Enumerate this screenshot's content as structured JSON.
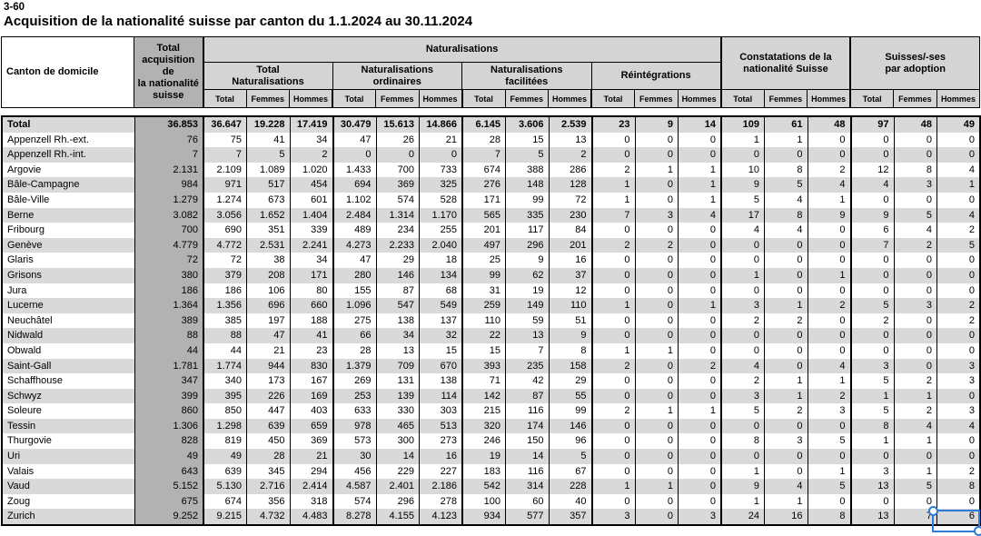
{
  "page": {
    "code": "3-60",
    "title": "Acquisition de la nationalité suisse par canton du 1.1.2024 au 30.11.2024"
  },
  "table": {
    "header": {
      "canton": "Canton de domicile",
      "total_acquisition": "Total\nacquisition de\nla nationalité\nsuisse",
      "naturalisations": "Naturalisations",
      "group_total": "Total\nNaturalisations",
      "group_ordinaires": "Naturalisations\nordinaires",
      "group_facilitees": "Naturalisations\nfacilitées",
      "group_reintegrations": "Réintégrations",
      "constatations": "Constatations de la\nnationalité Suisse",
      "adoption": "Suisses/-ses\npar adoption",
      "sub": [
        "Total",
        "Femmes",
        "Hommes"
      ]
    },
    "rows": [
      {
        "canton": "Total",
        "bold": true,
        "cells": [
          "36.853",
          "36.647",
          "19.228",
          "17.419",
          "30.479",
          "15.613",
          "14.866",
          "6.145",
          "3.606",
          "2.539",
          "23",
          "9",
          "14",
          "109",
          "61",
          "48",
          "97",
          "48",
          "49"
        ]
      },
      {
        "canton": "Appenzell Rh.-ext.",
        "bold": false,
        "cells": [
          "76",
          "75",
          "41",
          "34",
          "47",
          "26",
          "21",
          "28",
          "15",
          "13",
          "0",
          "0",
          "0",
          "1",
          "1",
          "0",
          "0",
          "0",
          "0"
        ]
      },
      {
        "canton": "Appenzell Rh.-int.",
        "bold": false,
        "cells": [
          "7",
          "7",
          "5",
          "2",
          "0",
          "0",
          "0",
          "7",
          "5",
          "2",
          "0",
          "0",
          "0",
          "0",
          "0",
          "0",
          "0",
          "0",
          "0"
        ]
      },
      {
        "canton": "Argovie",
        "bold": false,
        "cells": [
          "2.131",
          "2.109",
          "1.089",
          "1.020",
          "1.433",
          "700",
          "733",
          "674",
          "388",
          "286",
          "2",
          "1",
          "1",
          "10",
          "8",
          "2",
          "12",
          "8",
          "4"
        ]
      },
      {
        "canton": "Bâle-Campagne",
        "bold": false,
        "cells": [
          "984",
          "971",
          "517",
          "454",
          "694",
          "369",
          "325",
          "276",
          "148",
          "128",
          "1",
          "0",
          "1",
          "9",
          "5",
          "4",
          "4",
          "3",
          "1"
        ]
      },
      {
        "canton": "Bâle-Ville",
        "bold": false,
        "cells": [
          "1.279",
          "1.274",
          "673",
          "601",
          "1.102",
          "574",
          "528",
          "171",
          "99",
          "72",
          "1",
          "0",
          "1",
          "5",
          "4",
          "1",
          "0",
          "0",
          "0"
        ]
      },
      {
        "canton": "Berne",
        "bold": false,
        "cells": [
          "3.082",
          "3.056",
          "1.652",
          "1.404",
          "2.484",
          "1.314",
          "1.170",
          "565",
          "335",
          "230",
          "7",
          "3",
          "4",
          "17",
          "8",
          "9",
          "9",
          "5",
          "4"
        ]
      },
      {
        "canton": "Fribourg",
        "bold": false,
        "cells": [
          "700",
          "690",
          "351",
          "339",
          "489",
          "234",
          "255",
          "201",
          "117",
          "84",
          "0",
          "0",
          "0",
          "4",
          "4",
          "0",
          "6",
          "4",
          "2"
        ]
      },
      {
        "canton": "Genève",
        "bold": false,
        "cells": [
          "4.779",
          "4.772",
          "2.531",
          "2.241",
          "4.273",
          "2.233",
          "2.040",
          "497",
          "296",
          "201",
          "2",
          "2",
          "0",
          "0",
          "0",
          "0",
          "7",
          "2",
          "5"
        ]
      },
      {
        "canton": "Glaris",
        "bold": false,
        "cells": [
          "72",
          "72",
          "38",
          "34",
          "47",
          "29",
          "18",
          "25",
          "9",
          "16",
          "0",
          "0",
          "0",
          "0",
          "0",
          "0",
          "0",
          "0",
          "0"
        ]
      },
      {
        "canton": "Grisons",
        "bold": false,
        "cells": [
          "380",
          "379",
          "208",
          "171",
          "280",
          "146",
          "134",
          "99",
          "62",
          "37",
          "0",
          "0",
          "0",
          "1",
          "0",
          "1",
          "0",
          "0",
          "0"
        ]
      },
      {
        "canton": "Jura",
        "bold": false,
        "cells": [
          "186",
          "186",
          "106",
          "80",
          "155",
          "87",
          "68",
          "31",
          "19",
          "12",
          "0",
          "0",
          "0",
          "0",
          "0",
          "0",
          "0",
          "0",
          "0"
        ]
      },
      {
        "canton": "Lucerne",
        "bold": false,
        "cells": [
          "1.364",
          "1.356",
          "696",
          "660",
          "1.096",
          "547",
          "549",
          "259",
          "149",
          "110",
          "1",
          "0",
          "1",
          "3",
          "1",
          "2",
          "5",
          "3",
          "2"
        ]
      },
      {
        "canton": "Neuchâtel",
        "bold": false,
        "cells": [
          "389",
          "385",
          "197",
          "188",
          "275",
          "138",
          "137",
          "110",
          "59",
          "51",
          "0",
          "0",
          "0",
          "2",
          "2",
          "0",
          "2",
          "0",
          "2"
        ]
      },
      {
        "canton": "Nidwald",
        "bold": false,
        "cells": [
          "88",
          "88",
          "47",
          "41",
          "66",
          "34",
          "32",
          "22",
          "13",
          "9",
          "0",
          "0",
          "0",
          "0",
          "0",
          "0",
          "0",
          "0",
          "0"
        ]
      },
      {
        "canton": "Obwald",
        "bold": false,
        "cells": [
          "44",
          "44",
          "21",
          "23",
          "28",
          "13",
          "15",
          "15",
          "7",
          "8",
          "1",
          "1",
          "0",
          "0",
          "0",
          "0",
          "0",
          "0",
          "0"
        ]
      },
      {
        "canton": "Saint-Gall",
        "bold": false,
        "cells": [
          "1.781",
          "1.774",
          "944",
          "830",
          "1.379",
          "709",
          "670",
          "393",
          "235",
          "158",
          "2",
          "0",
          "2",
          "4",
          "0",
          "4",
          "3",
          "0",
          "3"
        ]
      },
      {
        "canton": "Schaffhouse",
        "bold": false,
        "cells": [
          "347",
          "340",
          "173",
          "167",
          "269",
          "131",
          "138",
          "71",
          "42",
          "29",
          "0",
          "0",
          "0",
          "2",
          "1",
          "1",
          "5",
          "2",
          "3"
        ]
      },
      {
        "canton": "Schwyz",
        "bold": false,
        "cells": [
          "399",
          "395",
          "226",
          "169",
          "253",
          "139",
          "114",
          "142",
          "87",
          "55",
          "0",
          "0",
          "0",
          "3",
          "1",
          "2",
          "1",
          "1",
          "0"
        ]
      },
      {
        "canton": "Soleure",
        "bold": false,
        "cells": [
          "860",
          "850",
          "447",
          "403",
          "633",
          "330",
          "303",
          "215",
          "116",
          "99",
          "2",
          "1",
          "1",
          "5",
          "2",
          "3",
          "5",
          "2",
          "3"
        ]
      },
      {
        "canton": "Tessin",
        "bold": false,
        "cells": [
          "1.306",
          "1.298",
          "639",
          "659",
          "978",
          "465",
          "513",
          "320",
          "174",
          "146",
          "0",
          "0",
          "0",
          "0",
          "0",
          "0",
          "8",
          "4",
          "4"
        ]
      },
      {
        "canton": "Thurgovie",
        "bold": false,
        "cells": [
          "828",
          "819",
          "450",
          "369",
          "573",
          "300",
          "273",
          "246",
          "150",
          "96",
          "0",
          "0",
          "0",
          "8",
          "3",
          "5",
          "1",
          "1",
          "0"
        ]
      },
      {
        "canton": "Uri",
        "bold": false,
        "cells": [
          "49",
          "49",
          "28",
          "21",
          "30",
          "14",
          "16",
          "19",
          "14",
          "5",
          "0",
          "0",
          "0",
          "0",
          "0",
          "0",
          "0",
          "0",
          "0"
        ]
      },
      {
        "canton": "Valais",
        "bold": false,
        "cells": [
          "643",
          "639",
          "345",
          "294",
          "456",
          "229",
          "227",
          "183",
          "116",
          "67",
          "0",
          "0",
          "0",
          "1",
          "0",
          "1",
          "3",
          "1",
          "2"
        ]
      },
      {
        "canton": "Vaud",
        "bold": false,
        "cells": [
          "5.152",
          "5.130",
          "2.716",
          "2.414",
          "4.587",
          "2.401",
          "2.186",
          "542",
          "314",
          "228",
          "1",
          "1",
          "0",
          "9",
          "4",
          "5",
          "13",
          "5",
          "8"
        ]
      },
      {
        "canton": "Zoug",
        "bold": false,
        "cells": [
          "675",
          "674",
          "356",
          "318",
          "574",
          "296",
          "278",
          "100",
          "60",
          "40",
          "0",
          "0",
          "0",
          "1",
          "1",
          "0",
          "0",
          "0",
          "0"
        ]
      },
      {
        "canton": "Zurich",
        "bold": false,
        "cells": [
          "9.252",
          "9.215",
          "4.732",
          "4.483",
          "8.278",
          "4.155",
          "4.123",
          "934",
          "577",
          "357",
          "3",
          "0",
          "3",
          "24",
          "16",
          "8",
          "13",
          "7",
          "6"
        ]
      }
    ]
  },
  "selection": {
    "color": "#2e7cd9"
  }
}
